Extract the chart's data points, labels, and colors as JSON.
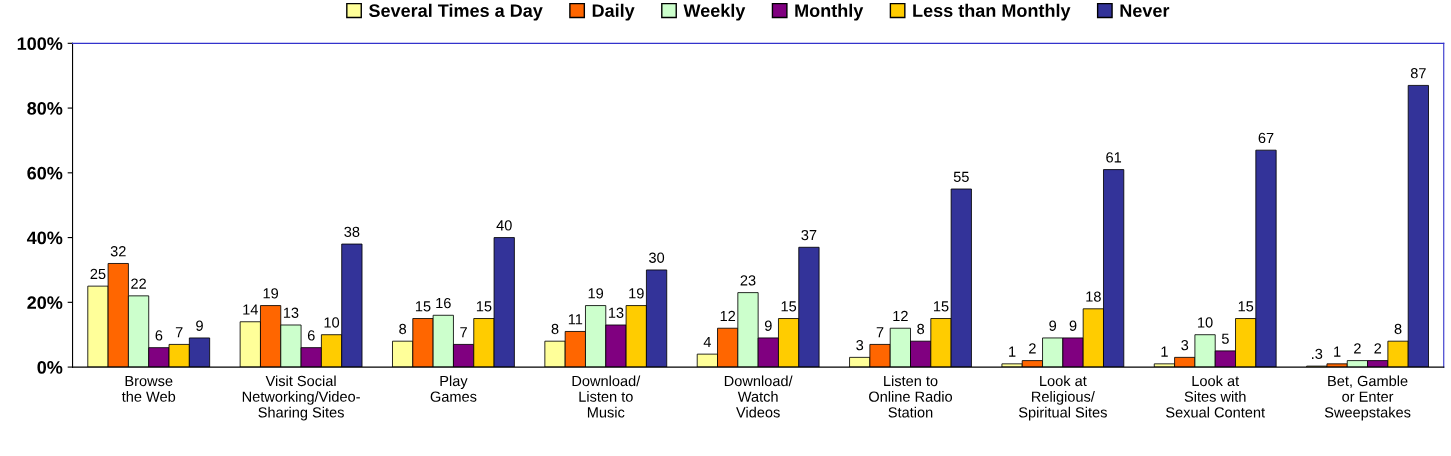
{
  "chart_data": {
    "type": "bar",
    "categories": [
      "Browse\nthe Web",
      "Visit Social\nNetworking/Video-\nSharing Sites",
      "Play\nGames",
      "Download/\nListen to\nMusic",
      "Download/\nWatch\nVideos",
      "Listen to\nOnline Radio\nStation",
      "Look at\nReligious/\nSpiritual Sites",
      "Look at\nSites with\nSexual Content",
      "Bet, Gamble\nor Enter\nSweepstakes"
    ],
    "series": [
      {
        "name": "Several Times a Day",
        "color": "#ffff99",
        "values": [
          25,
          14,
          8,
          8,
          4,
          3,
          1,
          1,
          0.3
        ],
        "value_labels": [
          "25",
          "14",
          "8",
          "8",
          "4",
          "3",
          "1",
          "1",
          ".3"
        ]
      },
      {
        "name": "Daily",
        "color": "#ff6600",
        "values": [
          32,
          19,
          15,
          11,
          12,
          7,
          2,
          3,
          1
        ],
        "value_labels": [
          "32",
          "19",
          "15",
          "11",
          "12",
          "7",
          "2",
          "3",
          "1"
        ]
      },
      {
        "name": "Weekly",
        "color": "#ccffcc",
        "values": [
          22,
          13,
          16,
          19,
          23,
          12,
          9,
          10,
          2
        ],
        "value_labels": [
          "22",
          "13",
          "16",
          "19",
          "23",
          "12",
          "9",
          "10",
          "2"
        ]
      },
      {
        "name": "Monthly",
        "color": "#800080",
        "values": [
          6,
          6,
          7,
          13,
          9,
          8,
          9,
          5,
          2
        ],
        "value_labels": [
          "6",
          "6",
          "7",
          "13",
          "9",
          "8",
          "9",
          "5",
          "2"
        ]
      },
      {
        "name": "Less than Monthly",
        "color": "#ffcc00",
        "values": [
          7,
          10,
          15,
          19,
          15,
          15,
          18,
          15,
          8
        ],
        "value_labels": [
          "7",
          "10",
          "15",
          "19",
          "15",
          "15",
          "18",
          "15",
          "8"
        ]
      },
      {
        "name": "Never",
        "color": "#333399",
        "values": [
          9,
          38,
          40,
          30,
          37,
          55,
          61,
          67,
          87
        ],
        "value_labels": [
          "9",
          "38",
          "40",
          "30",
          "37",
          "55",
          "61",
          "67",
          "87"
        ]
      }
    ],
    "ylim": [
      0,
      100
    ],
    "yticks": [
      {
        "value": 0,
        "label": "0%"
      },
      {
        "value": 20,
        "label": "20%"
      },
      {
        "value": 40,
        "label": "40%"
      },
      {
        "value": 60,
        "label": "60%"
      },
      {
        "value": 80,
        "label": "80%"
      },
      {
        "value": 100,
        "label": "100%"
      }
    ],
    "grid": false,
    "legend": "top"
  }
}
